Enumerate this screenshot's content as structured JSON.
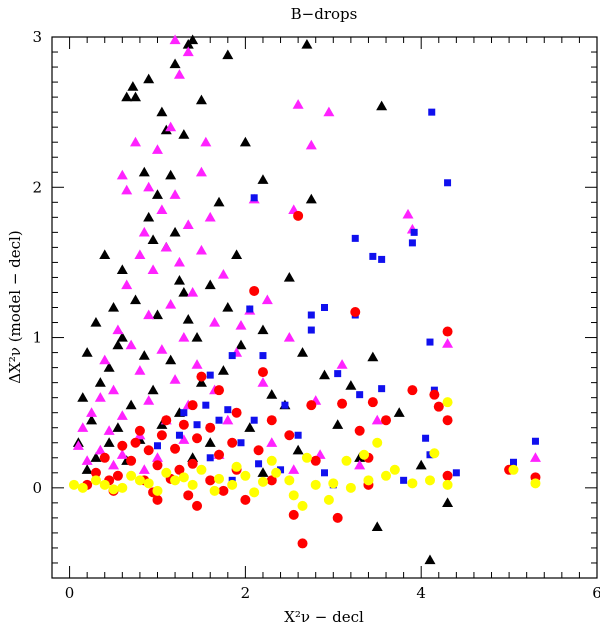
{
  "chart_data": {
    "type": "scatter",
    "title": "B−drops",
    "xlabel": "X²ν − decl",
    "ylabel": "ΔX²ν (model − decl)",
    "xlim": [
      -0.2,
      6
    ],
    "ylim": [
      -0.6,
      3
    ],
    "xticks": [
      0,
      2,
      4,
      6
    ],
    "yticks": [
      0,
      1,
      2,
      3
    ],
    "grid": false,
    "series": [
      {
        "color": "#000000",
        "marker": "triangle",
        "points": [
          [
            1.4,
            2.98
          ],
          [
            1.35,
            2.95
          ],
          [
            2.7,
            2.95
          ],
          [
            1.8,
            2.88
          ],
          [
            1.2,
            2.82
          ],
          [
            0.9,
            2.72
          ],
          [
            0.65,
            2.6
          ],
          [
            0.75,
            2.6
          ],
          [
            0.72,
            2.67
          ],
          [
            1.5,
            2.58
          ],
          [
            3.55,
            2.54
          ],
          [
            1.05,
            2.5
          ],
          [
            1.1,
            2.38
          ],
          [
            1.3,
            2.35
          ],
          [
            2.0,
            2.3
          ],
          [
            1.15,
            2.08
          ],
          [
            2.2,
            2.05
          ],
          [
            0.85,
            2.1
          ],
          [
            1.0,
            1.95
          ],
          [
            1.7,
            1.9
          ],
          [
            2.75,
            1.92
          ],
          [
            0.9,
            1.8
          ],
          [
            1.2,
            1.7
          ],
          [
            0.95,
            1.65
          ],
          [
            0.4,
            1.55
          ],
          [
            1.1,
            1.6
          ],
          [
            0.6,
            1.45
          ],
          [
            2.5,
            1.4
          ],
          [
            1.3,
            1.3
          ],
          [
            1.6,
            1.35
          ],
          [
            0.75,
            1.25
          ],
          [
            1.25,
            1.38
          ],
          [
            0.5,
            1.2
          ],
          [
            1.8,
            1.2
          ],
          [
            0.3,
            1.1
          ],
          [
            1.0,
            1.15
          ],
          [
            2.2,
            1.05
          ],
          [
            0.6,
            1.0
          ],
          [
            1.45,
            1.0
          ],
          [
            1.95,
            0.95
          ],
          [
            2.65,
            0.9
          ],
          [
            0.2,
            0.9
          ],
          [
            0.85,
            0.88
          ],
          [
            3.45,
            0.87
          ],
          [
            1.15,
            0.85
          ],
          [
            0.45,
            0.8
          ],
          [
            1.75,
            0.78
          ],
          [
            2.9,
            0.75
          ],
          [
            0.35,
            0.7
          ],
          [
            0.95,
            0.65
          ],
          [
            1.5,
            0.7
          ],
          [
            2.3,
            0.62
          ],
          [
            0.15,
            0.6
          ],
          [
            0.7,
            0.55
          ],
          [
            1.25,
            0.5
          ],
          [
            3.75,
            0.5
          ],
          [
            0.25,
            0.45
          ],
          [
            0.55,
            0.4
          ],
          [
            1.05,
            0.42
          ],
          [
            2.05,
            0.4
          ],
          [
            3.05,
            0.42
          ],
          [
            0.1,
            0.3
          ],
          [
            0.45,
            0.3
          ],
          [
            0.8,
            0.32
          ],
          [
            1.6,
            0.3
          ],
          [
            2.6,
            0.25
          ],
          [
            3.3,
            0.2
          ],
          [
            0.3,
            0.2
          ],
          [
            0.65,
            0.18
          ],
          [
            1.4,
            0.2
          ],
          [
            4.0,
            0.15
          ],
          [
            0.2,
            0.12
          ],
          [
            2.2,
            0.1
          ],
          [
            4.3,
            -0.1
          ],
          [
            3.5,
            -0.26
          ],
          [
            4.1,
            -0.48
          ],
          [
            1.9,
            1.55
          ],
          [
            0.55,
            0.95
          ],
          [
            1.35,
            1.12
          ],
          [
            2.45,
            0.55
          ],
          [
            3.2,
            0.68
          ]
        ]
      },
      {
        "color": "#ff22ff",
        "marker": "triangle",
        "points": [
          [
            1.2,
            2.98
          ],
          [
            1.35,
            2.9
          ],
          [
            1.25,
            2.75
          ],
          [
            2.6,
            2.55
          ],
          [
            2.95,
            2.5
          ],
          [
            1.15,
            2.4
          ],
          [
            0.75,
            2.3
          ],
          [
            1.55,
            2.3
          ],
          [
            1.0,
            2.25
          ],
          [
            2.75,
            2.28
          ],
          [
            0.6,
            2.08
          ],
          [
            0.65,
            1.98
          ],
          [
            1.5,
            2.1
          ],
          [
            0.9,
            2.0
          ],
          [
            1.2,
            1.95
          ],
          [
            2.1,
            1.92
          ],
          [
            1.05,
            1.85
          ],
          [
            1.6,
            1.8
          ],
          [
            2.55,
            1.85
          ],
          [
            3.85,
            1.82
          ],
          [
            1.35,
            1.75
          ],
          [
            0.85,
            1.7
          ],
          [
            1.1,
            1.6
          ],
          [
            3.9,
            1.72
          ],
          [
            0.8,
            1.55
          ],
          [
            1.5,
            1.58
          ],
          [
            1.25,
            1.5
          ],
          [
            0.95,
            1.45
          ],
          [
            1.75,
            1.42
          ],
          [
            0.65,
            1.35
          ],
          [
            1.4,
            1.3
          ],
          [
            1.15,
            1.22
          ],
          [
            2.05,
            1.18
          ],
          [
            0.9,
            1.15
          ],
          [
            0.55,
            1.05
          ],
          [
            1.65,
            1.1
          ],
          [
            1.3,
            1.0
          ],
          [
            2.5,
            1.0
          ],
          [
            0.7,
            0.95
          ],
          [
            1.05,
            0.92
          ],
          [
            1.9,
            0.9
          ],
          [
            0.4,
            0.85
          ],
          [
            1.45,
            0.82
          ],
          [
            3.1,
            0.82
          ],
          [
            0.8,
            0.78
          ],
          [
            1.2,
            0.72
          ],
          [
            2.2,
            0.7
          ],
          [
            0.5,
            0.65
          ],
          [
            1.65,
            0.65
          ],
          [
            0.35,
            0.6
          ],
          [
            0.9,
            0.58
          ],
          [
            1.35,
            0.55
          ],
          [
            2.8,
            0.58
          ],
          [
            0.25,
            0.5
          ],
          [
            0.6,
            0.48
          ],
          [
            1.1,
            0.45
          ],
          [
            1.8,
            0.45
          ],
          [
            3.5,
            0.45
          ],
          [
            0.15,
            0.4
          ],
          [
            0.45,
            0.38
          ],
          [
            0.8,
            0.35
          ],
          [
            1.3,
            0.32
          ],
          [
            2.3,
            0.3
          ],
          [
            0.1,
            0.28
          ],
          [
            0.35,
            0.25
          ],
          [
            0.6,
            0.22
          ],
          [
            1.0,
            0.2
          ],
          [
            1.7,
            0.22
          ],
          [
            0.2,
            0.18
          ],
          [
            0.5,
            0.15
          ],
          [
            0.85,
            0.12
          ],
          [
            4.3,
            0.96
          ],
          [
            5.3,
            0.2
          ],
          [
            2.85,
            0.22
          ],
          [
            3.3,
            0.15
          ],
          [
            2.55,
            0.12
          ],
          [
            1.95,
            1.08
          ],
          [
            2.25,
            1.25
          ]
        ]
      },
      {
        "color": "#1010ee",
        "marker": "square",
        "points": [
          [
            4.12,
            2.5
          ],
          [
            4.3,
            2.03
          ],
          [
            2.1,
            1.93
          ],
          [
            3.25,
            1.66
          ],
          [
            3.45,
            1.54
          ],
          [
            3.55,
            1.52
          ],
          [
            3.9,
            1.63
          ],
          [
            3.92,
            1.7
          ],
          [
            2.05,
            1.19
          ],
          [
            2.75,
            1.15
          ],
          [
            3.25,
            1.15
          ],
          [
            2.9,
            1.2
          ],
          [
            2.75,
            1.05
          ],
          [
            4.1,
            0.97
          ],
          [
            1.85,
            0.88
          ],
          [
            2.2,
            0.88
          ],
          [
            3.05,
            0.76
          ],
          [
            1.6,
            0.75
          ],
          [
            3.3,
            0.62
          ],
          [
            1.55,
            0.55
          ],
          [
            1.8,
            0.52
          ],
          [
            2.45,
            0.55
          ],
          [
            3.55,
            0.66
          ],
          [
            4.15,
            0.65
          ],
          [
            1.7,
            0.45
          ],
          [
            2.1,
            0.45
          ],
          [
            1.3,
            0.5
          ],
          [
            1.45,
            0.42
          ],
          [
            2.6,
            0.35
          ],
          [
            1.95,
            0.3
          ],
          [
            4.05,
            0.33
          ],
          [
            5.3,
            0.31
          ],
          [
            4.1,
            0.22
          ],
          [
            2.9,
            0.1
          ],
          [
            3.4,
            0.05
          ],
          [
            2.4,
            0.12
          ],
          [
            3.8,
            0.05
          ],
          [
            1.25,
            0.35
          ],
          [
            1.0,
            0.28
          ],
          [
            1.6,
            0.2
          ],
          [
            2.15,
            0.16
          ],
          [
            5.05,
            0.17
          ],
          [
            4.4,
            0.1
          ],
          [
            3.0,
            0.02
          ],
          [
            1.85,
            0.05
          ]
        ]
      },
      {
        "color": "#ff0000",
        "marker": "circle",
        "points": [
          [
            2.6,
            1.81
          ],
          [
            2.1,
            1.31
          ],
          [
            3.25,
            1.17
          ],
          [
            4.3,
            1.04
          ],
          [
            1.5,
            0.74
          ],
          [
            1.7,
            0.65
          ],
          [
            2.2,
            0.77
          ],
          [
            1.4,
            0.55
          ],
          [
            1.9,
            0.5
          ],
          [
            2.75,
            0.55
          ],
          [
            3.1,
            0.56
          ],
          [
            3.45,
            0.57
          ],
          [
            3.9,
            0.65
          ],
          [
            4.15,
            0.62
          ],
          [
            4.3,
            0.45
          ],
          [
            4.2,
            0.54
          ],
          [
            1.1,
            0.45
          ],
          [
            1.3,
            0.42
          ],
          [
            1.6,
            0.4
          ],
          [
            2.3,
            0.45
          ],
          [
            3.6,
            0.45
          ],
          [
            0.8,
            0.38
          ],
          [
            1.05,
            0.35
          ],
          [
            1.45,
            0.33
          ],
          [
            1.85,
            0.3
          ],
          [
            2.5,
            0.35
          ],
          [
            3.3,
            0.38
          ],
          [
            0.6,
            0.28
          ],
          [
            0.9,
            0.25
          ],
          [
            1.2,
            0.26
          ],
          [
            1.7,
            0.22
          ],
          [
            2.15,
            0.25
          ],
          [
            0.4,
            0.2
          ],
          [
            0.7,
            0.18
          ],
          [
            1.0,
            0.15
          ],
          [
            1.4,
            0.16
          ],
          [
            1.9,
            0.12
          ],
          [
            2.8,
            0.18
          ],
          [
            3.4,
            0.2
          ],
          [
            0.3,
            0.1
          ],
          [
            0.55,
            0.08
          ],
          [
            0.85,
            0.05
          ],
          [
            1.15,
            0.06
          ],
          [
            1.6,
            0.05
          ],
          [
            2.3,
            0.05
          ],
          [
            0.2,
            0.02
          ],
          [
            0.5,
            -0.02
          ],
          [
            0.95,
            -0.03
          ],
          [
            1.35,
            -0.05
          ],
          [
            1.75,
            -0.02
          ],
          [
            2.55,
            -0.18
          ],
          [
            2.65,
            -0.37
          ],
          [
            3.05,
            -0.2
          ],
          [
            3.4,
            0.02
          ],
          [
            4.3,
            0.08
          ],
          [
            5.0,
            0.12
          ],
          [
            5.3,
            0.07
          ],
          [
            1.45,
            -0.12
          ],
          [
            1.0,
            -0.08
          ],
          [
            2.0,
            -0.08
          ],
          [
            0.75,
            0.3
          ],
          [
            1.25,
            0.12
          ],
          [
            0.45,
            0.05
          ]
        ]
      },
      {
        "color": "#ffff00",
        "marker": "circle",
        "points": [
          [
            4.3,
            0.57
          ],
          [
            3.5,
            0.3
          ],
          [
            3.35,
            0.22
          ],
          [
            3.15,
            0.18
          ],
          [
            4.15,
            0.23
          ],
          [
            2.7,
            0.2
          ],
          [
            2.3,
            0.18
          ],
          [
            1.9,
            0.14
          ],
          [
            1.5,
            0.12
          ],
          [
            1.1,
            0.1
          ],
          [
            0.7,
            0.08
          ],
          [
            0.3,
            0.05
          ],
          [
            0.05,
            0.02
          ],
          [
            0.15,
            0.0
          ],
          [
            0.4,
            0.02
          ],
          [
            0.6,
            0.0
          ],
          [
            0.9,
            0.03
          ],
          [
            1.2,
            0.05
          ],
          [
            1.4,
            0.02
          ],
          [
            1.7,
            0.06
          ],
          [
            2.0,
            0.08
          ],
          [
            2.2,
            0.04
          ],
          [
            2.5,
            0.05
          ],
          [
            2.8,
            0.02
          ],
          [
            3.0,
            0.03
          ],
          [
            3.2,
            0.0
          ],
          [
            3.4,
            0.05
          ],
          [
            3.6,
            0.08
          ],
          [
            3.9,
            0.03
          ],
          [
            4.1,
            0.05
          ],
          [
            4.3,
            0.02
          ],
          [
            5.05,
            0.12
          ],
          [
            5.3,
            0.03
          ],
          [
            2.1,
            -0.03
          ],
          [
            1.65,
            -0.02
          ],
          [
            1.0,
            -0.02
          ],
          [
            0.5,
            -0.01
          ],
          [
            2.55,
            -0.05
          ],
          [
            2.95,
            -0.08
          ],
          [
            2.65,
            -0.12
          ],
          [
            0.8,
            0.05
          ],
          [
            1.3,
            0.07
          ],
          [
            1.85,
            0.02
          ],
          [
            2.35,
            0.1
          ],
          [
            3.7,
            0.12
          ]
        ]
      }
    ]
  }
}
